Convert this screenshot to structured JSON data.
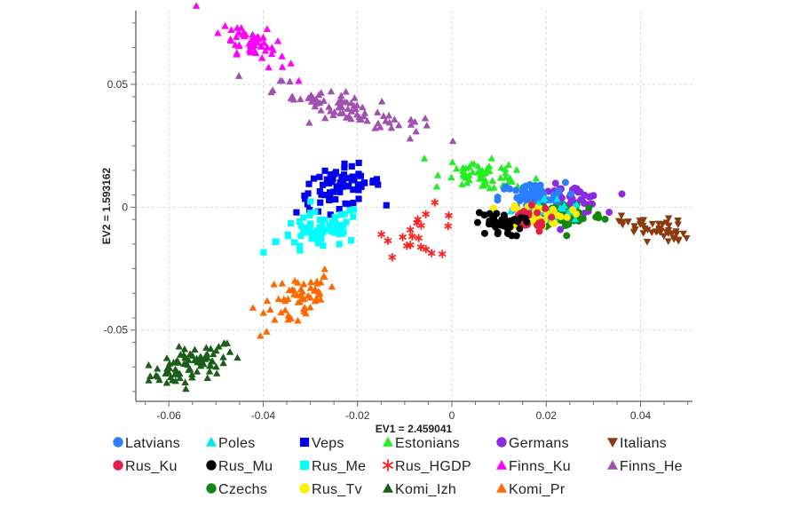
{
  "chart_data": {
    "type": "scatter",
    "title": "",
    "xlabel": "EV1 = 2.459041",
    "ylabel": "EV2 = 1.593162",
    "xlim": [
      -0.067,
      0.051
    ],
    "ylim": [
      -0.079,
      0.08
    ],
    "xticks": [
      {
        "v": -0.06,
        "label": "-0.06"
      },
      {
        "v": -0.04,
        "label": "-0.04"
      },
      {
        "v": -0.02,
        "label": "-0.02"
      },
      {
        "v": 0,
        "label": "0"
      },
      {
        "v": 0.02,
        "label": "0.02"
      },
      {
        "v": 0.04,
        "label": "0.04"
      }
    ],
    "yticks": [
      {
        "v": 0.05,
        "label": "0.05"
      },
      {
        "v": 0,
        "label": "0"
      },
      {
        "v": -0.05,
        "label": "-0.05"
      }
    ],
    "grid": true,
    "legend_position": "bottom",
    "series": [
      {
        "name": "Komi_Izh",
        "marker": "triangle",
        "color": "#1a5e1a",
        "center": [
          -0.055,
          -0.064
        ],
        "spread": [
          0.0045,
          0.0035
        ],
        "tilt": 0.5,
        "n": 80
      },
      {
        "name": "Komi_Pr",
        "marker": "triangle",
        "color": "#ff6a00",
        "center": [
          -0.033,
          -0.038
        ],
        "spread": [
          0.004,
          0.005
        ],
        "tilt": 0.9,
        "n": 60
      },
      {
        "name": "Finns_Ku",
        "marker": "triangle",
        "color": "#ff00ff",
        "center": [
          -0.042,
          0.067
        ],
        "spread": [
          0.0035,
          0.0035
        ],
        "tilt": -0.9,
        "n": 60
      },
      {
        "name": "Finns_He",
        "marker": "triangle",
        "color": "#a050b0",
        "center": [
          -0.022,
          0.04
        ],
        "spread": [
          0.008,
          0.003
        ],
        "tilt": -0.55,
        "n": 80
      },
      {
        "name": "Veps",
        "marker": "square",
        "color": "#0000ee",
        "center": [
          -0.024,
          0.008
        ],
        "spread": [
          0.0045,
          0.004
        ],
        "tilt": 0.3,
        "n": 70
      },
      {
        "name": "Rus_Me",
        "marker": "square",
        "color": "#00ffff",
        "center": [
          -0.028,
          -0.01
        ],
        "spread": [
          0.0045,
          0.004
        ],
        "tilt": 0.4,
        "n": 70
      },
      {
        "name": "Estonians",
        "marker": "triangle",
        "color": "#22ee22",
        "center": [
          0.007,
          0.013
        ],
        "spread": [
          0.0045,
          0.003
        ],
        "tilt": -0.3,
        "n": 60
      },
      {
        "name": "Rus_HGDP",
        "marker": "star",
        "color": "#ff2020",
        "center": [
          -0.006,
          -0.01
        ],
        "spread": [
          0.004,
          0.005
        ],
        "tilt": 0,
        "n": 20
      },
      {
        "name": "Germans",
        "marker": "circle",
        "color": "#8a2be2",
        "center": [
          0.025,
          0.003
        ],
        "spread": [
          0.0035,
          0.003
        ],
        "tilt": 0,
        "n": 50
      },
      {
        "name": "Latvians",
        "marker": "circle",
        "color": "#2a7fff",
        "center": [
          0.017,
          0.004
        ],
        "spread": [
          0.0035,
          0.003
        ],
        "tilt": 0,
        "n": 60
      },
      {
        "name": "Czechs",
        "marker": "circle",
        "color": "#118811",
        "center": [
          0.025,
          -0.003
        ],
        "spread": [
          0.0035,
          0.003
        ],
        "tilt": 0,
        "n": 50
      },
      {
        "name": "Poles",
        "marker": "triangle",
        "color": "#00e5ee",
        "center": [
          0.02,
          -0.002
        ],
        "spread": [
          0.004,
          0.003
        ],
        "tilt": 0,
        "n": 40
      },
      {
        "name": "Rus_Tv",
        "marker": "circle",
        "color": "#ffee00",
        "center": [
          0.018,
          -0.003
        ],
        "spread": [
          0.0035,
          0.0025
        ],
        "tilt": 0,
        "n": 40
      },
      {
        "name": "Rus_Ku",
        "marker": "circle",
        "color": "#e0204a",
        "center": [
          0.015,
          -0.005
        ],
        "spread": [
          0.003,
          0.0025
        ],
        "tilt": 0,
        "n": 25
      },
      {
        "name": "Rus_Mu",
        "marker": "circle",
        "color": "#000000",
        "center": [
          0.01,
          -0.007
        ],
        "spread": [
          0.0025,
          0.0025
        ],
        "tilt": 0,
        "n": 40
      },
      {
        "name": "Italians",
        "marker": "triangle-down",
        "color": "#8b3a0f",
        "center": [
          0.043,
          -0.009
        ],
        "spread": [
          0.0035,
          0.0025
        ],
        "tilt": -0.3,
        "n": 50
      }
    ],
    "legend": [
      [
        "Latvians",
        "Poles",
        "Veps",
        "Estonians",
        "Germans",
        "Italians"
      ],
      [
        "Rus_Ku",
        "Rus_Mu",
        "Rus_Me",
        "Rus_HGDP",
        "Finns_Ku",
        "Finns_He"
      ],
      [
        "",
        "Czechs",
        "Rus_Tv",
        "Komi_Izh",
        "Komi_Pr",
        ""
      ]
    ]
  }
}
